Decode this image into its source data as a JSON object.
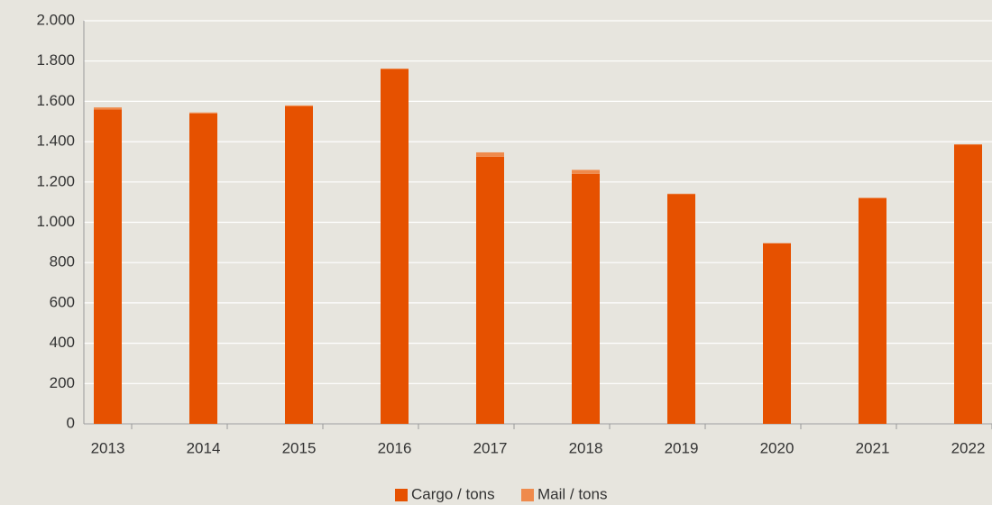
{
  "chart_data": {
    "type": "stacked_bar",
    "categories": [
      "2013",
      "2014",
      "2015",
      "2016",
      "2017",
      "2018",
      "2019",
      "2020",
      "2021",
      "2022"
    ],
    "series": [
      {
        "name": "Cargo / tons",
        "color": "#e65100",
        "values": [
          1560,
          1540,
          1575,
          1760,
          1325,
          1240,
          1140,
          895,
          1120,
          1385
        ]
      },
      {
        "name": "Mail / tons",
        "color": "#ef8a4c",
        "values": [
          10,
          5,
          5,
          3,
          22,
          20,
          2,
          2,
          2,
          2
        ]
      }
    ],
    "ylim": [
      0,
      2000
    ],
    "yticks": [
      0,
      200,
      400,
      600,
      800,
      {
        "value": 1000,
        "label": "1.000"
      },
      {
        "value": 1200,
        "label": "1.200"
      },
      {
        "value": 1400,
        "label": "1.400"
      },
      {
        "value": 1600,
        "label": "1.600"
      },
      {
        "value": 1800,
        "label": "1.800"
      },
      {
        "value": 2000,
        "label": "2.000"
      }
    ],
    "grid": true,
    "legend": "bottom"
  }
}
